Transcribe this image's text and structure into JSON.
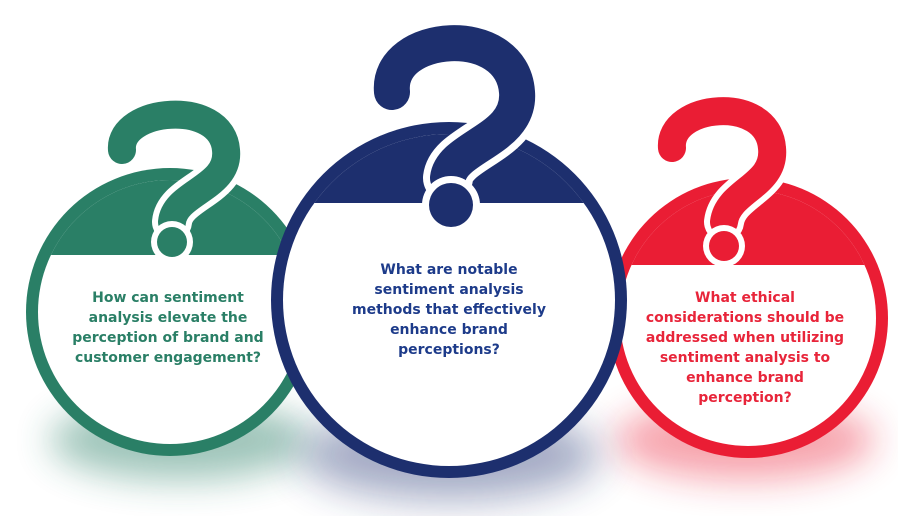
{
  "questions": [
    {
      "id": "left",
      "text": "How can sentiment analysis elevate the perception of brand and customer engagement?",
      "color": "#2a7f66"
    },
    {
      "id": "middle",
      "text": "What are notable sentiment analysis methods that effectively enhance brand perceptions?",
      "color": "#1d3b8a"
    },
    {
      "id": "right",
      "text": "What ethical considerations should be addressed when utilizing sentiment analysis to enhance brand perception?",
      "color": "#e8253a"
    }
  ],
  "icons": [
    "question-mark-icon",
    "question-mark-icon",
    "question-mark-icon"
  ],
  "colors": {
    "green": "#2a7f66",
    "navy": "#1d2f6e",
    "red": "#ea1d34",
    "background": "#ffffff"
  }
}
